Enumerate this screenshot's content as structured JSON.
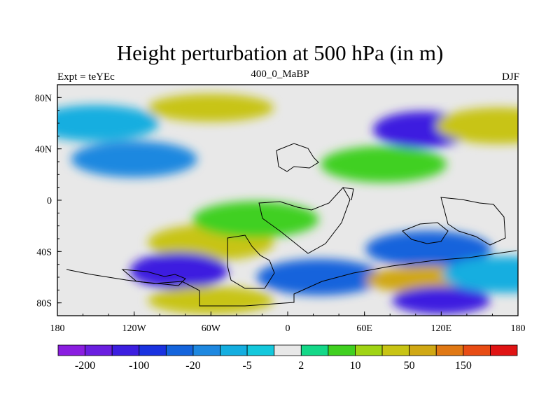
{
  "title": "Height perturbation at 500 hPa (in m)",
  "left_label": "Expt = teYEc",
  "center_label": "400_0_MaBP",
  "right_label": "DJF",
  "chart_data": {
    "type": "heatmap",
    "title": "Height perturbation at 500 hPa (in m)",
    "x_ticks": [
      "180",
      "120W",
      "60W",
      "0",
      "60E",
      "120E",
      "180"
    ],
    "x_tick_values": [
      -180,
      -120,
      -60,
      0,
      60,
      120,
      180
    ],
    "y_ticks": [
      "80N",
      "40N",
      "0",
      "40S",
      "80S"
    ],
    "y_tick_values": [
      80,
      40,
      0,
      -40,
      -80
    ],
    "xlim": [
      -180,
      180
    ],
    "ylim": [
      -90,
      90
    ],
    "colorbar": {
      "colors": [
        "#8a1de0",
        "#6a1ee0",
        "#3c1ee0",
        "#1a32e0",
        "#1464dc",
        "#1e88e0",
        "#14aee0",
        "#14c8dc",
        "#e8e8e8",
        "#14d888",
        "#40d020",
        "#a0d414",
        "#c8c414",
        "#d0a814",
        "#e07814",
        "#e84c14",
        "#e01414"
      ],
      "tick_labels": [
        "-200",
        "-100",
        "-20",
        "-5",
        "2",
        "10",
        "50",
        "150"
      ],
      "tick_after_box": [
        1,
        3,
        5,
        7,
        9,
        11,
        13,
        15
      ]
    },
    "features": [
      {
        "lon": -60,
        "lat": 72,
        "value": 40
      },
      {
        "lon": -150,
        "lat": 60,
        "value": -8
      },
      {
        "lon": 105,
        "lat": 55,
        "value": -120
      },
      {
        "lon": 165,
        "lat": 58,
        "value": 30
      },
      {
        "lon": -120,
        "lat": 32,
        "value": -10
      },
      {
        "lon": 75,
        "lat": 28,
        "value": 15
      },
      {
        "lon": -60,
        "lat": -33,
        "value": 40
      },
      {
        "lon": -25,
        "lat": -15,
        "value": 10
      },
      {
        "lon": -85,
        "lat": -55,
        "value": -110
      },
      {
        "lon": 25,
        "lat": -60,
        "value": -30
      },
      {
        "lon": 110,
        "lat": -38,
        "value": -40
      },
      {
        "lon": 110,
        "lat": -62,
        "value": 50
      },
      {
        "lon": 120,
        "lat": -78,
        "value": -110
      },
      {
        "lon": -60,
        "lat": -78,
        "value": 30
      },
      {
        "lon": 170,
        "lat": -58,
        "value": -5
      }
    ]
  }
}
